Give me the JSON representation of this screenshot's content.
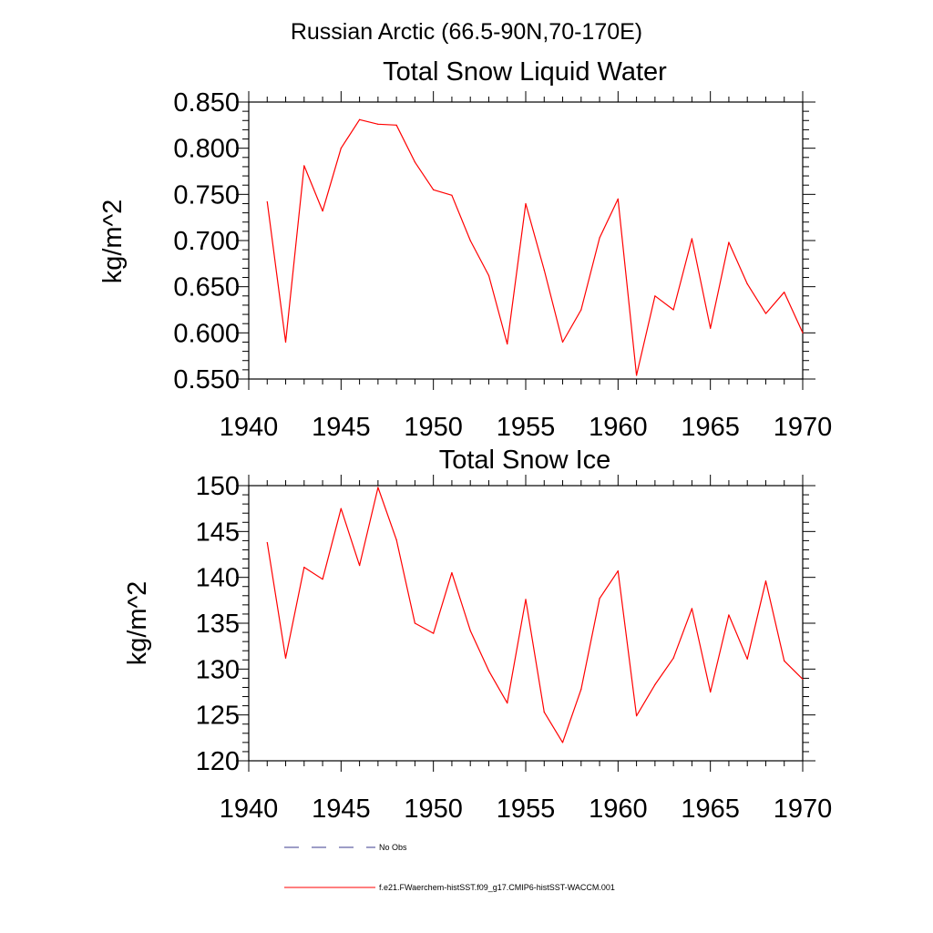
{
  "figure": {
    "title": "Russian Arctic (66.5-90N,70-170E)"
  },
  "legend": {
    "items": [
      {
        "label": "No Obs",
        "style": "dashed",
        "color": "#3b3b8f"
      },
      {
        "label": "f.e21.FWaerchem-histSST.f09_g17.CMIP6-histSST-WACCM.001",
        "style": "solid",
        "color": "#ff0000"
      }
    ]
  },
  "chart_data": [
    {
      "type": "line",
      "title": "Total Snow Liquid Water",
      "xlabel": "",
      "ylabel": "kg/m^2",
      "xlim": [
        1940,
        1970
      ],
      "ylim": [
        0.55,
        0.85
      ],
      "xticks": [
        1940,
        1945,
        1950,
        1955,
        1960,
        1965,
        1970
      ],
      "yticks": [
        0.55,
        0.6,
        0.65,
        0.7,
        0.75,
        0.8,
        0.85
      ],
      "ytick_labels": [
        "0.550",
        "0.600",
        "0.650",
        "0.700",
        "0.750",
        "0.800",
        "0.850"
      ],
      "x": [
        1941,
        1942,
        1943,
        1944,
        1945,
        1946,
        1947,
        1948,
        1949,
        1950,
        1951,
        1952,
        1953,
        1954,
        1955,
        1956,
        1957,
        1958,
        1959,
        1960,
        1961,
        1962,
        1963,
        1964,
        1965,
        1966,
        1967,
        1968,
        1969,
        1970
      ],
      "series": [
        {
          "color": "#ff0000",
          "values": [
            0.742,
            0.59,
            0.781,
            0.732,
            0.8,
            0.831,
            0.826,
            0.825,
            0.785,
            0.755,
            0.749,
            0.7,
            0.662,
            0.588,
            0.74,
            0.668,
            0.59,
            0.625,
            0.703,
            0.745,
            0.554,
            0.64,
            0.625,
            0.702,
            0.605,
            0.698,
            0.653,
            0.621,
            0.644,
            0.6
          ]
        }
      ]
    },
    {
      "type": "line",
      "title": "Total Snow Ice",
      "xlabel": "",
      "ylabel": "kg/m^2",
      "xlim": [
        1940,
        1970
      ],
      "ylim": [
        120,
        150
      ],
      "xticks": [
        1940,
        1945,
        1950,
        1955,
        1960,
        1965,
        1970
      ],
      "yticks": [
        120,
        125,
        130,
        135,
        140,
        145,
        150
      ],
      "ytick_labels": [
        "120",
        "125",
        "130",
        "135",
        "140",
        "145",
        "150"
      ],
      "x": [
        1941,
        1942,
        1943,
        1944,
        1945,
        1946,
        1947,
        1948,
        1949,
        1950,
        1951,
        1952,
        1953,
        1954,
        1955,
        1956,
        1957,
        1958,
        1959,
        1960,
        1961,
        1962,
        1963,
        1964,
        1965,
        1966,
        1967,
        1968,
        1969,
        1970
      ],
      "series": [
        {
          "color": "#ff0000",
          "values": [
            143.8,
            131.2,
            141.1,
            139.8,
            147.5,
            141.3,
            149.8,
            144.1,
            135.0,
            133.9,
            140.5,
            134.2,
            129.8,
            126.3,
            137.6,
            125.3,
            122.0,
            127.8,
            137.7,
            140.7,
            124.9,
            128.3,
            131.2,
            136.6,
            127.5,
            135.9,
            131.1,
            139.6,
            130.9,
            128.9
          ]
        }
      ]
    }
  ]
}
